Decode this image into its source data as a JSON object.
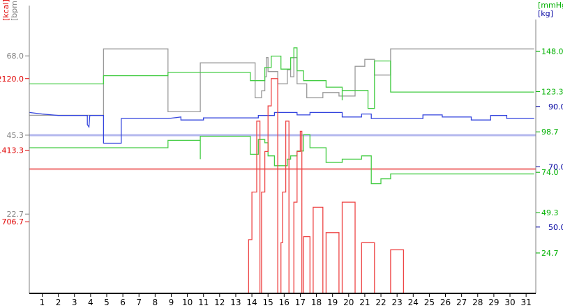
{
  "colors": {
    "kcal": "#e00000",
    "bpm": "#808080",
    "mmhg": "#00b000",
    "kg": "#0000a0",
    "kcal_trace": "#ee4444",
    "bpm_trace": "#999999",
    "mmhg_trace": "#44cc44",
    "kg_trace": "#3344dd",
    "ref_kcal": "#f4a0a0",
    "ref_bpm": "#b4b8ee"
  },
  "chart_data": {
    "type": "line",
    "step": true,
    "x": {
      "ticks": [
        "1",
        "2",
        "3",
        "4",
        "5",
        "6",
        "7",
        "8",
        "9",
        "10",
        "11",
        "12",
        "13",
        "14",
        "15",
        "16",
        "17",
        "18",
        "19",
        "20",
        "21",
        "22",
        "23",
        "24",
        "25",
        "26",
        "27",
        "28",
        "29",
        "30",
        "31"
      ],
      "range": [
        0.2,
        31.6
      ]
    },
    "axes": {
      "kcal": {
        "label": "[kcal]",
        "ticks": [
          "706.7",
          "1413.3",
          "2120.0"
        ],
        "tick_values": [
          706.7,
          1413.3,
          2120.0
        ],
        "range": [
          0,
          2826.7
        ],
        "side": "left"
      },
      "bpm": {
        "label": "[bpm]",
        "ticks": [
          "22.7",
          "45.3",
          "68.0"
        ],
        "tick_values": [
          22.7,
          45.3,
          68.0
        ],
        "range": [
          0,
          82.0
        ],
        "side": "left"
      },
      "mmhg": {
        "label": "[mmHg]",
        "ticks": [
          "24.7",
          "49.3",
          "74.0",
          "98.7",
          "123.3",
          "148.0"
        ],
        "tick_values": [
          24.7,
          49.3,
          74.0,
          98.7,
          123.3,
          148.0
        ],
        "range": [
          0,
          175.0
        ],
        "side": "right"
      },
      "kg": {
        "label": "[kg]",
        "ticks": [
          "50.0",
          "70.0",
          "90.0"
        ],
        "tick_values": [
          50.0,
          70.0,
          90.0
        ],
        "range": [
          28.0,
          123.0
        ],
        "side": "right"
      }
    },
    "reference_lines": [
      {
        "axis": "bpm",
        "value": 45.3,
        "color": "ref_bpm"
      },
      {
        "axis": "kcal",
        "value": 1227,
        "color": "ref_kcal"
      }
    ],
    "series": [
      {
        "axis": "bpm",
        "color": "bpm_trace",
        "points": [
          [
            0.2,
            51.0
          ],
          [
            4.8,
            51.0
          ],
          [
            4.8,
            70.0
          ],
          [
            8.8,
            70.0
          ],
          [
            8.8,
            52.0
          ],
          [
            10.8,
            52.0
          ],
          [
            10.8,
            58.0
          ],
          [
            10.8,
            66.0
          ],
          [
            14.2,
            66.0
          ],
          [
            14.2,
            56.0
          ],
          [
            14.6,
            56.0
          ],
          [
            14.6,
            58.0
          ],
          [
            14.8,
            58.0
          ],
          [
            14.8,
            62.0
          ],
          [
            14.9,
            62.0
          ],
          [
            14.9,
            67.5
          ],
          [
            15.0,
            67.5
          ],
          [
            15.0,
            63.5
          ],
          [
            15.6,
            63.5
          ],
          [
            15.6,
            60.0
          ],
          [
            16.2,
            60.0
          ],
          [
            16.2,
            64.0
          ],
          [
            16.4,
            64.0
          ],
          [
            16.4,
            62.0
          ],
          [
            16.6,
            62.0
          ],
          [
            16.6,
            67.5
          ],
          [
            16.8,
            67.5
          ],
          [
            16.8,
            60.0
          ],
          [
            17.4,
            60.0
          ],
          [
            17.4,
            56.0
          ],
          [
            18.4,
            56.0
          ],
          [
            18.4,
            57.5
          ],
          [
            19.4,
            57.5
          ],
          [
            19.4,
            56.5
          ],
          [
            20.4,
            56.5
          ],
          [
            20.4,
            65.0
          ],
          [
            21.0,
            65.0
          ],
          [
            21.0,
            67.0
          ],
          [
            21.6,
            67.0
          ],
          [
            21.6,
            62.5
          ],
          [
            22.6,
            62.5
          ],
          [
            22.6,
            70.0
          ],
          [
            31.5,
            70.0
          ]
        ]
      },
      {
        "axis": "mmhg",
        "color": "mmhg_trace",
        "points": [
          [
            0.2,
            128.0
          ],
          [
            4.8,
            128.0
          ],
          [
            4.8,
            133.0
          ],
          [
            8.8,
            133.0
          ],
          [
            8.8,
            135.0
          ],
          [
            13.9,
            135.0
          ],
          [
            13.9,
            130.0
          ],
          [
            14.8,
            130.0
          ],
          [
            14.8,
            138.0
          ],
          [
            15.2,
            138.0
          ],
          [
            15.2,
            145.0
          ],
          [
            15.8,
            145.0
          ],
          [
            15.8,
            137.0
          ],
          [
            16.4,
            137.0
          ],
          [
            16.4,
            144.0
          ],
          [
            16.6,
            144.0
          ],
          [
            16.6,
            150.0
          ],
          [
            16.8,
            150.0
          ],
          [
            16.8,
            136.0
          ],
          [
            17.2,
            136.0
          ],
          [
            17.2,
            130.0
          ],
          [
            18.6,
            130.0
          ],
          [
            18.6,
            126.0
          ],
          [
            19.6,
            126.0
          ],
          [
            19.6,
            118.0
          ],
          [
            19.6,
            124.0
          ],
          [
            21.2,
            124.0
          ],
          [
            21.2,
            113.0
          ],
          [
            21.6,
            113.0
          ],
          [
            21.6,
            123.0
          ],
          [
            21.6,
            142.0
          ],
          [
            22.6,
            142.0
          ],
          [
            22.6,
            123.0
          ],
          [
            31.5,
            123.0
          ]
        ]
      },
      {
        "axis": "mmhg",
        "color": "mmhg_trace",
        "points": [
          [
            0.2,
            89.0
          ],
          [
            8.8,
            89.0
          ],
          [
            8.8,
            93.5
          ],
          [
            10.8,
            93.5
          ],
          [
            10.8,
            82.0
          ],
          [
            10.8,
            96.0
          ],
          [
            13.9,
            96.0
          ],
          [
            13.9,
            85.0
          ],
          [
            14.4,
            85.0
          ],
          [
            14.4,
            94.0
          ],
          [
            14.8,
            94.0
          ],
          [
            14.8,
            92.0
          ],
          [
            15.0,
            92.0
          ],
          [
            15.0,
            84.0
          ],
          [
            15.4,
            84.0
          ],
          [
            15.4,
            78.0
          ],
          [
            16.2,
            78.0
          ],
          [
            16.2,
            82.0
          ],
          [
            16.4,
            82.0
          ],
          [
            16.4,
            84.0
          ],
          [
            16.8,
            84.0
          ],
          [
            16.8,
            87.0
          ],
          [
            17.2,
            87.0
          ],
          [
            17.2,
            97.0
          ],
          [
            17.6,
            97.0
          ],
          [
            17.6,
            89.0
          ],
          [
            18.6,
            89.0
          ],
          [
            18.6,
            80.0
          ],
          [
            19.6,
            80.0
          ],
          [
            19.6,
            82.0
          ],
          [
            20.8,
            82.0
          ],
          [
            20.8,
            84.0
          ],
          [
            21.4,
            84.0
          ],
          [
            21.4,
            67.0
          ],
          [
            22.0,
            67.0
          ],
          [
            22.0,
            70.0
          ],
          [
            22.6,
            70.0
          ],
          [
            22.6,
            73.0
          ],
          [
            31.5,
            73.0
          ]
        ]
      },
      {
        "axis": "kg",
        "color": "kg_trace",
        "points": [
          [
            0.2,
            88.0
          ],
          [
            1.0,
            87.5
          ],
          [
            2.0,
            87.0
          ],
          [
            3.8,
            87.0
          ],
          [
            3.8,
            84.0
          ],
          [
            3.9,
            83.2
          ],
          [
            3.95,
            87.0
          ],
          [
            4.8,
            87.0
          ],
          [
            4.8,
            77.8
          ],
          [
            5.9,
            77.8
          ],
          [
            5.9,
            86.0
          ],
          [
            8.8,
            86.0
          ],
          [
            9.6,
            86.5
          ],
          [
            9.6,
            85.5
          ],
          [
            11.0,
            85.5
          ],
          [
            11.0,
            86.2
          ],
          [
            14.4,
            86.2
          ],
          [
            14.4,
            87.0
          ],
          [
            15.4,
            87.0
          ],
          [
            15.4,
            88.0
          ],
          [
            16.8,
            88.0
          ],
          [
            16.8,
            87.2
          ],
          [
            17.6,
            87.2
          ],
          [
            17.6,
            88.0
          ],
          [
            19.6,
            88.0
          ],
          [
            19.6,
            86.5
          ],
          [
            20.8,
            86.5
          ],
          [
            20.8,
            87.5
          ],
          [
            21.4,
            87.5
          ],
          [
            21.4,
            86.0
          ],
          [
            24.6,
            86.0
          ],
          [
            24.6,
            87.2
          ],
          [
            25.8,
            87.2
          ],
          [
            25.8,
            86.5
          ],
          [
            27.6,
            86.5
          ],
          [
            27.6,
            85.5
          ],
          [
            28.8,
            85.5
          ],
          [
            28.8,
            87.0
          ],
          [
            29.8,
            87.0
          ],
          [
            29.8,
            86.0
          ],
          [
            31.5,
            86.0
          ]
        ]
      },
      {
        "axis": "kcal",
        "color": "kcal_trace",
        "points": [
          [
            0.2,
            0
          ],
          [
            13.8,
            0
          ],
          [
            13.8,
            530
          ],
          [
            14.0,
            530
          ],
          [
            14.0,
            1000
          ],
          [
            14.3,
            1000
          ],
          [
            14.3,
            1700
          ],
          [
            14.5,
            1700
          ],
          [
            14.5,
            0
          ],
          [
            14.6,
            0
          ],
          [
            14.6,
            1000
          ],
          [
            14.8,
            1000
          ],
          [
            14.8,
            1400
          ],
          [
            15.0,
            1400
          ],
          [
            15.0,
            1450
          ],
          [
            15.0,
            1850
          ],
          [
            15.2,
            1850
          ],
          [
            15.2,
            2120
          ],
          [
            15.6,
            2120
          ],
          [
            15.6,
            0
          ],
          [
            15.8,
            0
          ],
          [
            15.8,
            500
          ],
          [
            15.9,
            500
          ],
          [
            15.9,
            1000
          ],
          [
            16.1,
            1000
          ],
          [
            16.1,
            1700
          ],
          [
            16.3,
            1700
          ],
          [
            16.3,
            0
          ],
          [
            16.6,
            0
          ],
          [
            16.6,
            900
          ],
          [
            16.8,
            900
          ],
          [
            16.8,
            1400
          ],
          [
            17.0,
            1400
          ],
          [
            17.0,
            1600
          ],
          [
            17.1,
            1600
          ],
          [
            17.1,
            0
          ],
          [
            17.2,
            0
          ],
          [
            17.2,
            560
          ],
          [
            17.6,
            560
          ],
          [
            17.6,
            0
          ],
          [
            17.8,
            0
          ],
          [
            17.8,
            850
          ],
          [
            18.4,
            850
          ],
          [
            18.4,
            0
          ],
          [
            18.6,
            0
          ],
          [
            18.6,
            600
          ],
          [
            19.4,
            600
          ],
          [
            19.4,
            0
          ],
          [
            19.6,
            0
          ],
          [
            19.6,
            900
          ],
          [
            20.4,
            900
          ],
          [
            20.4,
            0
          ],
          [
            20.8,
            0
          ],
          [
            20.8,
            500
          ],
          [
            21.6,
            500
          ],
          [
            21.6,
            0
          ],
          [
            22.6,
            0
          ],
          [
            22.6,
            430
          ],
          [
            23.4,
            430
          ],
          [
            23.4,
            0
          ],
          [
            31.5,
            0
          ]
        ]
      }
    ]
  }
}
